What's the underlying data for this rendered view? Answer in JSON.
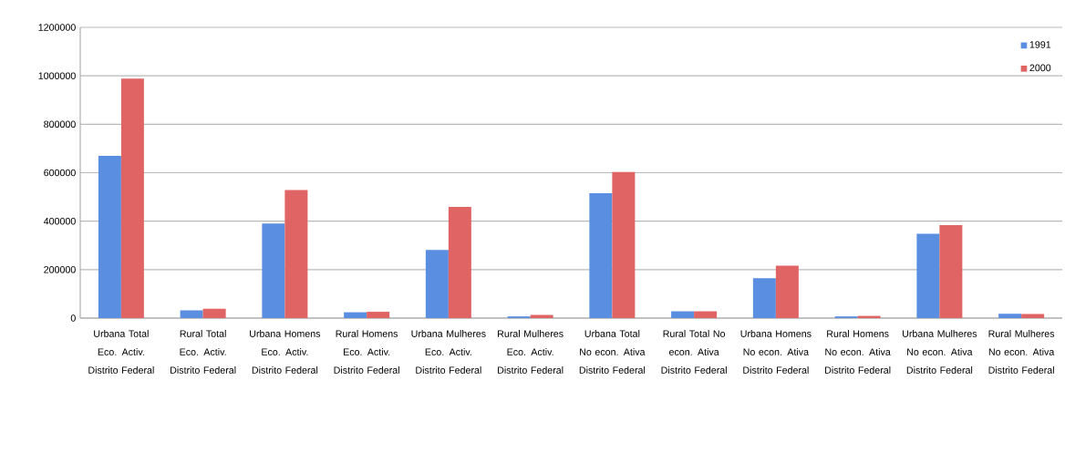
{
  "chart_data": {
    "type": "bar",
    "categories": [
      "Urbana Total Eco. Activ. Distrito Federal",
      "Rural Total Eco. Activ. Distrito Federal",
      "Urbana Homens Eco. Activ. Distrito Federal",
      "Rural Homens Eco. Activ. Distrito Federal",
      "Urbana Mulheres Eco. Activ. Distrito Federal",
      "Rural Mulheres Eco. Activ. Distrito Federal",
      "Urbana Total No econ. Ativa Distrito Federal",
      "Rural Total No econ. Ativa Distrito Federal",
      "Urbana Homens No econ. Ativa Distrito Federal",
      "Rural Homens No econ. Ativa Distrito Federal",
      "Urbana Mulheres No econ. Ativa Distrito Federal",
      "Rural Mulheres No econ. Ativa Distrito Federal"
    ],
    "series": [
      {
        "name": "1991",
        "color": "#5a8ee0",
        "values": [
          670000,
          32000,
          390000,
          24000,
          281000,
          7000,
          515000,
          28000,
          165000,
          7000,
          348000,
          18000
        ]
      },
      {
        "name": "2000",
        "color": "#e06464",
        "values": [
          988000,
          39000,
          529000,
          26000,
          459000,
          13000,
          603000,
          28000,
          216000,
          9000,
          384000,
          17000
        ]
      }
    ],
    "ylim": [
      0,
      1200000
    ],
    "yticks": [
      0,
      200000,
      400000,
      600000,
      800000,
      1000000,
      1200000
    ],
    "grid": "y",
    "legend": "top right"
  }
}
